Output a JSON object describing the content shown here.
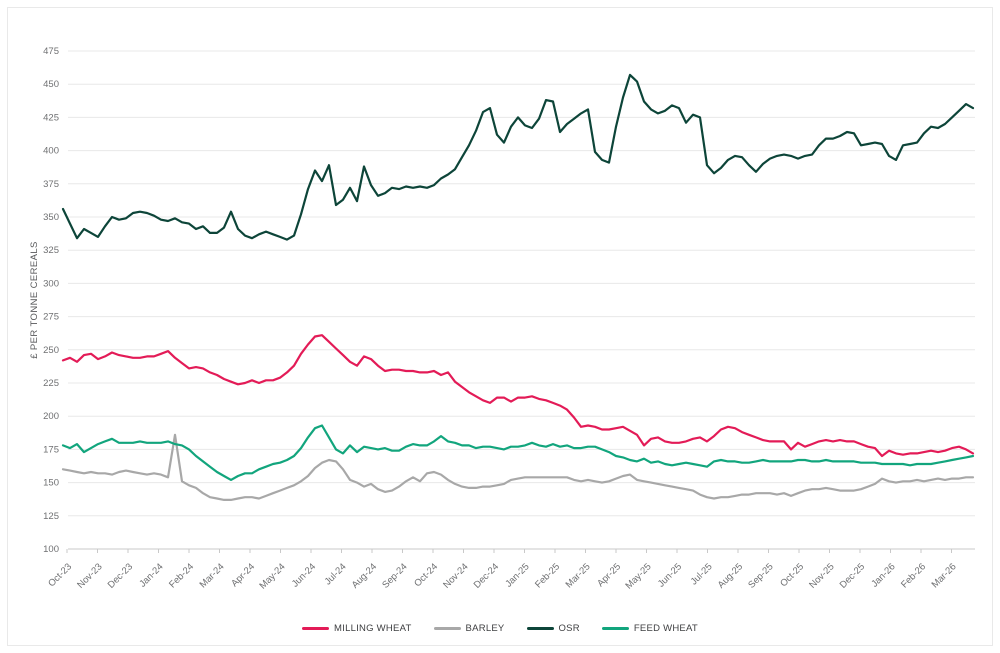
{
  "chart_data": {
    "type": "line",
    "title": "",
    "ylabel": "£ PER TONNE CEREALS",
    "xlabel": "",
    "ylim": [
      100,
      475
    ],
    "y_ticks": [
      475,
      450,
      425,
      400,
      375,
      350,
      325,
      300,
      275,
      250,
      225,
      200,
      175,
      150,
      125,
      100
    ],
    "x_labels": [
      "Oct-23",
      "Nov-23",
      "Dec-23",
      "Jan-24",
      "Feb-24",
      "Mar-24",
      "Apr-24",
      "May-24",
      "Jun-24",
      "Jul-24",
      "Aug-24",
      "Sep-24",
      "Oct-24",
      "Nov-24",
      "Dec-24",
      "Jan-25",
      "Feb-25",
      "Mar-25",
      "Apr-25",
      "May-25",
      "Jun-25",
      "Jul-25",
      "Aug-25",
      "Sep-25",
      "Oct-25",
      "Nov-25",
      "Dec-25",
      "Jan-26",
      "Feb-26",
      "Mar-26"
    ],
    "grid": true,
    "legend_position": "bottom-center",
    "frequency": "weekly",
    "colors": {
      "grid": "#e8e8e8",
      "axis": "#c9c9c9",
      "tick_text": "#6f7072",
      "axis_title": "#58595b"
    },
    "series": [
      {
        "name": "MILLING WHEAT",
        "color": "#e31b57",
        "values": [
          242,
          244,
          241,
          246,
          247,
          243,
          245,
          248,
          246,
          245,
          244,
          244,
          245,
          245,
          247,
          249,
          244,
          240,
          236,
          237,
          236,
          233,
          231,
          228,
          226,
          224,
          225,
          227,
          225,
          227,
          227,
          229,
          233,
          238,
          247,
          254,
          260,
          261,
          256,
          251,
          246,
          241,
          238,
          245,
          243,
          238,
          234,
          235,
          235,
          234,
          234,
          233,
          233,
          234,
          231,
          233,
          226,
          222,
          218,
          215,
          212,
          210,
          214,
          214,
          211,
          214,
          214,
          215,
          213,
          212,
          210,
          208,
          205,
          199,
          192,
          193,
          192,
          190,
          190,
          191,
          192,
          189,
          186,
          178,
          183,
          184,
          181,
          180,
          180,
          181,
          183,
          184,
          181,
          185,
          190,
          192,
          191,
          188,
          186,
          184,
          182,
          181,
          181,
          181,
          175,
          180,
          177,
          179,
          181,
          182,
          181,
          182,
          181,
          181,
          179,
          177,
          176,
          170,
          174,
          172,
          171,
          172,
          172,
          173,
          174,
          173,
          174,
          176,
          177,
          175,
          172
        ]
      },
      {
        "name": "BARLEY",
        "color": "#a8a8a8",
        "values": [
          160,
          159,
          158,
          157,
          158,
          157,
          157,
          156,
          158,
          159,
          158,
          157,
          156,
          157,
          156,
          154,
          186,
          151,
          148,
          146,
          142,
          139,
          138,
          137,
          137,
          138,
          139,
          139,
          138,
          140,
          142,
          144,
          146,
          148,
          151,
          155,
          161,
          165,
          167,
          166,
          160,
          152,
          150,
          147,
          149,
          145,
          143,
          144,
          147,
          151,
          154,
          151,
          157,
          158,
          156,
          152,
          149,
          147,
          146,
          146,
          147,
          147,
          148,
          149,
          152,
          153,
          154,
          154,
          154,
          154,
          154,
          154,
          154,
          152,
          151,
          152,
          151,
          150,
          151,
          153,
          155,
          156,
          152,
          151,
          150,
          149,
          148,
          147,
          146,
          145,
          144,
          141,
          139,
          138,
          139,
          139,
          140,
          141,
          141,
          142,
          142,
          142,
          141,
          142,
          140,
          142,
          144,
          145,
          145,
          146,
          145,
          144,
          144,
          144,
          145,
          147,
          149,
          153,
          151,
          150,
          151,
          151,
          152,
          151,
          152,
          153,
          152,
          153,
          153,
          154,
          154
        ]
      },
      {
        "name": "OSR",
        "color": "#0d4539",
        "values": [
          356,
          345,
          334,
          341,
          338,
          335,
          343,
          350,
          348,
          349,
          353,
          354,
          353,
          351,
          348,
          347,
          349,
          346,
          345,
          341,
          343,
          338,
          338,
          342,
          354,
          341,
          336,
          334,
          337,
          339,
          337,
          335,
          333,
          336,
          352,
          371,
          385,
          377,
          389,
          359,
          363,
          372,
          362,
          388,
          374,
          366,
          368,
          372,
          371,
          373,
          372,
          373,
          372,
          374,
          379,
          382,
          386,
          395,
          404,
          415,
          429,
          432,
          412,
          406,
          418,
          425,
          419,
          417,
          424,
          438,
          437,
          414,
          420,
          424,
          428,
          431,
          399,
          393,
          391,
          418,
          440,
          457,
          452,
          437,
          431,
          428,
          430,
          434,
          432,
          421,
          427,
          425,
          389,
          383,
          387,
          393,
          396,
          395,
          389,
          384,
          390,
          394,
          396,
          397,
          396,
          394,
          396,
          397,
          404,
          409,
          409,
          411,
          414,
          413,
          404,
          405,
          406,
          405,
          396,
          393,
          404,
          405,
          406,
          413,
          418,
          417,
          420,
          425,
          430,
          435,
          432
        ]
      },
      {
        "name": "FEED WHEAT",
        "color": "#12a57d",
        "values": [
          178,
          176,
          179,
          173,
          176,
          179,
          181,
          183,
          180,
          180,
          180,
          181,
          180,
          180,
          180,
          181,
          179,
          178,
          175,
          170,
          166,
          162,
          158,
          155,
          152,
          155,
          157,
          157,
          160,
          162,
          164,
          165,
          167,
          170,
          176,
          184,
          191,
          193,
          184,
          175,
          172,
          178,
          173,
          177,
          176,
          175,
          176,
          174,
          174,
          177,
          179,
          178,
          178,
          181,
          185,
          181,
          180,
          178,
          178,
          176,
          177,
          177,
          176,
          175,
          177,
          177,
          178,
          180,
          178,
          177,
          179,
          177,
          178,
          176,
          176,
          177,
          177,
          175,
          173,
          170,
          169,
          167,
          166,
          168,
          165,
          166,
          164,
          163,
          164,
          165,
          164,
          163,
          162,
          166,
          167,
          166,
          166,
          165,
          165,
          166,
          167,
          166,
          166,
          166,
          166,
          167,
          167,
          166,
          166,
          167,
          166,
          166,
          166,
          166,
          165,
          165,
          165,
          164,
          164,
          164,
          164,
          163,
          164,
          164,
          164,
          165,
          166,
          167,
          168,
          169,
          170
        ]
      }
    ]
  }
}
